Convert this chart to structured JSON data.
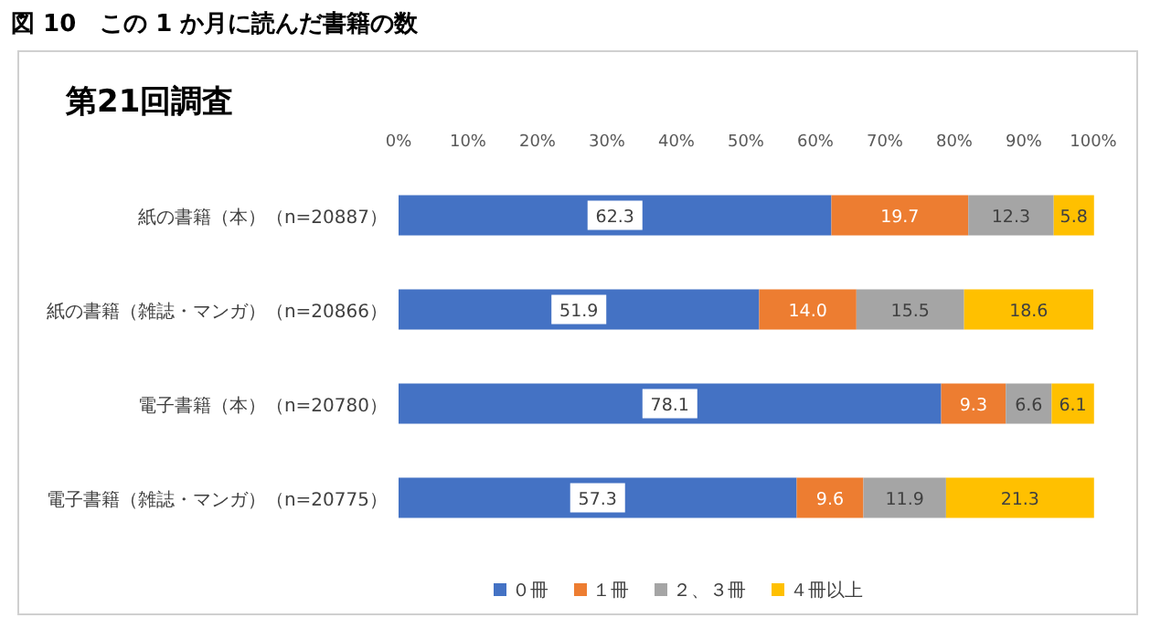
{
  "chart_data": {
    "type": "bar",
    "orientation": "horizontal",
    "stacked": true,
    "title": "図 10　この 1 か月に読んだ書籍の数",
    "subtitle": "第21回調査",
    "categories": [
      "紙の書籍（本）（n=20887）",
      "紙の書籍（雑誌・マンガ）（n=20866）",
      "電子書籍（本）（n=20780）",
      "電子書籍（雑誌・マンガ）（n=20775）"
    ],
    "series": [
      {
        "name": "０冊",
        "color": "#4472c4",
        "values": [
          62.3,
          51.9,
          78.1,
          57.3
        ],
        "value_labels": [
          "62.3",
          "51.9",
          "78.1",
          "57.3"
        ]
      },
      {
        "name": "１冊",
        "color": "#ed7d31",
        "values": [
          19.7,
          14.0,
          9.3,
          9.6
        ],
        "value_labels": [
          "19.7",
          "14.0",
          "9.3",
          "9.6"
        ]
      },
      {
        "name": "２、３冊",
        "color": "#a5a5a5",
        "values": [
          12.3,
          15.5,
          6.6,
          11.9
        ],
        "value_labels": [
          "12.3",
          "15.5",
          "6.6",
          "11.9"
        ]
      },
      {
        "name": "４冊以上",
        "color": "#ffc000",
        "values": [
          5.8,
          18.6,
          6.1,
          21.3
        ],
        "value_labels": [
          "5.8",
          "18.6",
          "6.1",
          "21.3"
        ]
      }
    ],
    "xlim": [
      0,
      100
    ],
    "xticks": [
      {
        "value": 0,
        "label": "0%"
      },
      {
        "value": 10,
        "label": "10%"
      },
      {
        "value": 20,
        "label": "20%"
      },
      {
        "value": 30,
        "label": "30%"
      },
      {
        "value": 40,
        "label": "40%"
      },
      {
        "value": 50,
        "label": "50%"
      },
      {
        "value": 60,
        "label": "60%"
      },
      {
        "value": 70,
        "label": "70%"
      },
      {
        "value": 80,
        "label": "80%"
      },
      {
        "value": 90,
        "label": "90%"
      },
      {
        "value": 100,
        "label": "100%"
      }
    ],
    "legend": "bottom"
  }
}
